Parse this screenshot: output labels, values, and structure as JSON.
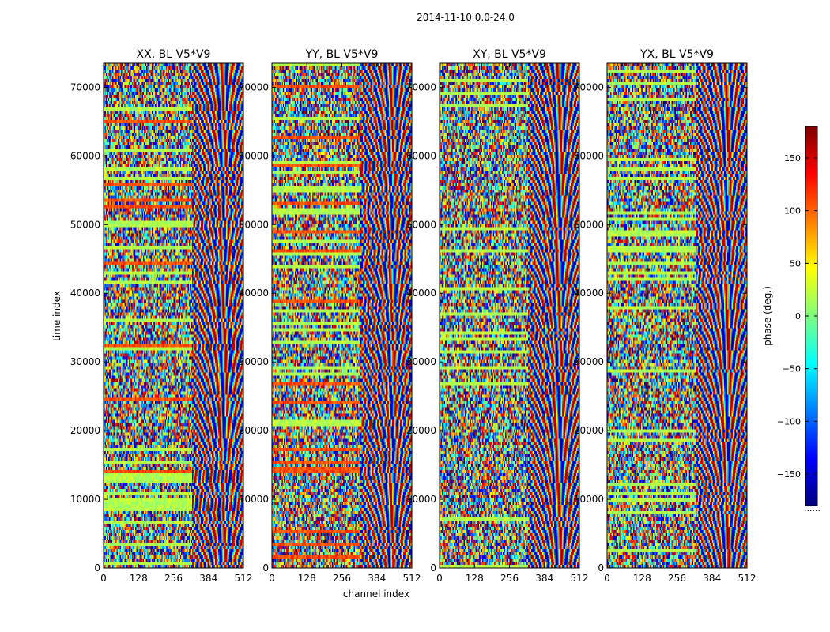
{
  "chart_data": {
    "type": "heatmap",
    "suptitle": "2014-11-10 0.0-24.0",
    "xlabel": "channel index",
    "ylabel": "time index",
    "colorbar_label": "phase (deg.)",
    "colormap": "jet",
    "xlim": [
      0,
      512
    ],
    "ylim": [
      0,
      73500
    ],
    "clim": [
      -180,
      180
    ],
    "x_ticks": [
      0,
      128,
      256,
      384,
      512
    ],
    "y_ticks": [
      0,
      10000,
      20000,
      30000,
      40000,
      50000,
      60000,
      70000
    ],
    "colorbar_ticks": [
      -150,
      -100,
      -50,
      0,
      50,
      100,
      150
    ],
    "colorbar_stops": [
      "#00007f",
      "#0000ff",
      "#007fff",
      "#00ffff",
      "#7fff7f",
      "#ffff00",
      "#ff7f00",
      "#ff0000",
      "#7f0000"
    ],
    "panels": [
      {
        "title": "XX, BL V5*V9"
      },
      {
        "title": "YY, BL V5*V9"
      },
      {
        "title": "XY, BL V5*V9"
      },
      {
        "title": "YX, BL V5*V9"
      }
    ],
    "colorbar_offset_text": "......"
  }
}
